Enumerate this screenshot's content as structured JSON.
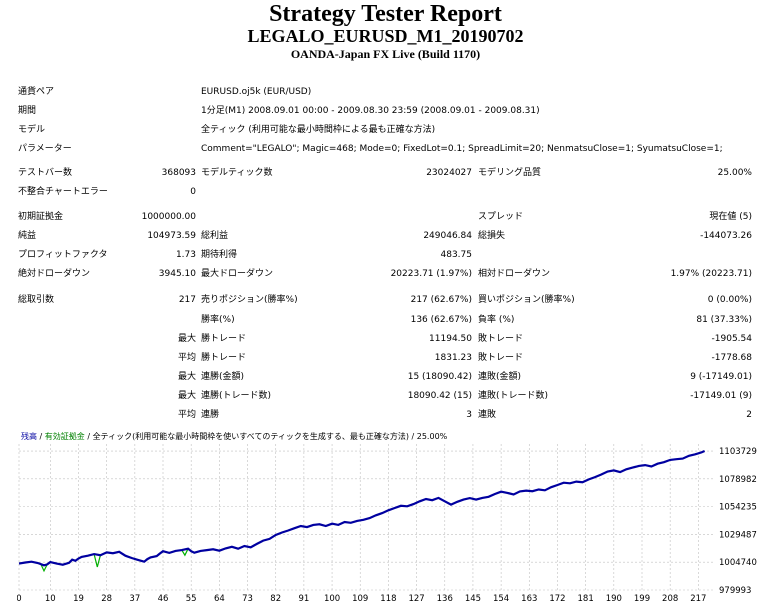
{
  "header": {
    "title": "Strategy Tester Report",
    "subtitle": "LEGALO_EURUSD_M1_20190702",
    "broker": "OANDA-Japan FX Live (Build 1170)"
  },
  "info": {
    "symbol_label": "通貨ペア",
    "symbol": "EURUSD.oj5k (EUR/USD)",
    "period_label": "期間",
    "period": "1分足(M1) 2008.09.01 00:00 - 2009.08.30 23:59 (2008.09.01 - 2009.08.31)",
    "model_label": "モデル",
    "model": "全ティック (利用可能な最小時間枠による最も正確な方法)",
    "params_label": "パラメーター",
    "params": "Comment=\"LEGALO\"; Magic=468; Mode=0; FixedLot=0.1; SpreadLimit=20; NenmatsuClose=1; SyumatsuClose=1;"
  },
  "stats": {
    "bars_label": "テストバー数",
    "bars": "368093",
    "ticks_label": "モデルティック数",
    "ticks": "23024027",
    "quality_label": "モデリング品質",
    "quality": "25.00%",
    "errors_label": "不整合チャートエラー",
    "errors": "0",
    "deposit_label": "初期証拠金",
    "deposit": "1000000.00",
    "spread_label": "スプレッド",
    "spread": "現在値 (5)",
    "net_label": "純益",
    "net": "104973.59",
    "gross_profit_label": "総利益",
    "gross_profit": "249046.84",
    "gross_loss_label": "総損失",
    "gross_loss": "-144073.26",
    "pf_label": "プロフィットファクタ",
    "pf": "1.73",
    "expected_label": "期待利得",
    "expected": "483.75",
    "abs_dd_label": "絶対ドローダウン",
    "abs_dd": "3945.10",
    "max_dd_label": "最大ドローダウン",
    "max_dd": "20223.71 (1.97%)",
    "rel_dd_label": "相対ドローダウン",
    "rel_dd": "1.97% (20223.71)",
    "trades_label": "総取引数",
    "trades": "217",
    "short_label": "売りポジション(勝率%)",
    "short": "217 (62.67%)",
    "long_label": "買いポジション(勝率%)",
    "long": "0 (0.00%)",
    "win_label": "勝率(%)",
    "win": "136 (62.67%)",
    "loss_label": "負率 (%)",
    "loss": "81 (37.33%)",
    "max_prefix": "最大",
    "avg_prefix": "平均",
    "largest_win_label": "勝トレード",
    "largest_win": "11194.50",
    "largest_loss_label": "敗トレード",
    "largest_loss": "-1905.54",
    "avg_win_label": "勝トレード",
    "avg_win": "1831.23",
    "avg_loss_label": "敗トレード",
    "avg_loss": "-1778.68",
    "cw_money_label": "連勝(金額)",
    "cw_money": "15 (18090.42)",
    "cl_money_label": "連敗(金額)",
    "cl_money": "9 (-17149.01)",
    "cw_trades_label": "連勝(トレード数)",
    "cw_trades": "18090.42 (15)",
    "cl_trades_label": "連敗(トレード数)",
    "cl_trades": "-17149.01 (9)",
    "avg_cw_label": "連勝",
    "avg_cw": "3",
    "avg_cl_label": "連敗",
    "avg_cl": "2"
  },
  "chart_data": {
    "type": "line",
    "legend": {
      "balance": "残高",
      "sep1": " / ",
      "equity": "有効証拠金",
      "sep2": " / ",
      "note": "全ティック(利用可能な最小時間枠を使いすべてのティックを生成する、最も正確な方法)",
      "sep3": " / ",
      "quality": "25.00%"
    },
    "x_ticks": [
      "0",
      "10",
      "19",
      "28",
      "37",
      "46",
      "55",
      "64",
      "73",
      "82",
      "91",
      "100",
      "109",
      "118",
      "127",
      "136",
      "145",
      "154",
      "163",
      "172",
      "181",
      "190",
      "199",
      "208",
      "217"
    ],
    "y_ticks": [
      "1103729",
      "1078982",
      "1054235",
      "1029487",
      "1004740",
      "979993"
    ],
    "ylim": [
      979993,
      1110000
    ],
    "xlim": [
      0,
      222
    ],
    "colors": {
      "balance": "#0000a0",
      "equity": "#00b000",
      "grid": "#c0c0c0"
    },
    "balance": [
      [
        0,
        1003500
      ],
      [
        2,
        1004500
      ],
      [
        4,
        1005200
      ],
      [
        6,
        1004000
      ],
      [
        8,
        1002000
      ],
      [
        9,
        1002800
      ],
      [
        10,
        1004800
      ],
      [
        12,
        1003500
      ],
      [
        14,
        1002500
      ],
      [
        16,
        1004200
      ],
      [
        17,
        1007000
      ],
      [
        18,
        1006000
      ],
      [
        19,
        1008000
      ],
      [
        20,
        1009500
      ],
      [
        22,
        1010500
      ],
      [
        24,
        1012000
      ],
      [
        26,
        1011000
      ],
      [
        28,
        1013500
      ],
      [
        30,
        1012800
      ],
      [
        32,
        1014000
      ],
      [
        34,
        1010500
      ],
      [
        36,
        1008500
      ],
      [
        38,
        1006800
      ],
      [
        40,
        1005200
      ],
      [
        41,
        1007500
      ],
      [
        42,
        1009000
      ],
      [
        44,
        1010200
      ],
      [
        45,
        1012500
      ],
      [
        46,
        1014500
      ],
      [
        48,
        1013000
      ],
      [
        50,
        1014800
      ],
      [
        52,
        1015500
      ],
      [
        54,
        1016800
      ],
      [
        55,
        1014500
      ],
      [
        56,
        1013200
      ],
      [
        58,
        1014800
      ],
      [
        60,
        1015500
      ],
      [
        62,
        1016200
      ],
      [
        64,
        1015000
      ],
      [
        66,
        1017000
      ],
      [
        68,
        1018500
      ],
      [
        70,
        1016800
      ],
      [
        72,
        1019200
      ],
      [
        74,
        1018000
      ],
      [
        76,
        1021000
      ],
      [
        78,
        1024000
      ],
      [
        80,
        1025500
      ],
      [
        82,
        1029000
      ],
      [
        84,
        1031200
      ],
      [
        86,
        1033000
      ],
      [
        88,
        1035000
      ],
      [
        90,
        1037000
      ],
      [
        92,
        1036000
      ],
      [
        94,
        1038000
      ],
      [
        96,
        1038500
      ],
      [
        98,
        1037000
      ],
      [
        100,
        1039000
      ],
      [
        102,
        1038000
      ],
      [
        104,
        1040500
      ],
      [
        106,
        1039800
      ],
      [
        108,
        1041500
      ],
      [
        110,
        1042500
      ],
      [
        112,
        1044000
      ],
      [
        114,
        1046500
      ],
      [
        116,
        1048500
      ],
      [
        118,
        1051000
      ],
      [
        120,
        1053000
      ],
      [
        122,
        1055000
      ],
      [
        124,
        1054500
      ],
      [
        126,
        1056500
      ],
      [
        128,
        1059000
      ],
      [
        130,
        1061000
      ],
      [
        132,
        1060000
      ],
      [
        134,
        1062000
      ],
      [
        136,
        1059000
      ],
      [
        138,
        1056000
      ],
      [
        140,
        1058500
      ],
      [
        142,
        1060500
      ],
      [
        144,
        1061800
      ],
      [
        146,
        1060500
      ],
      [
        148,
        1062000
      ],
      [
        150,
        1063000
      ],
      [
        152,
        1065500
      ],
      [
        154,
        1067500
      ],
      [
        156,
        1066500
      ],
      [
        158,
        1065000
      ],
      [
        160,
        1067800
      ],
      [
        162,
        1068500
      ],
      [
        164,
        1068000
      ],
      [
        166,
        1069500
      ],
      [
        168,
        1068800
      ],
      [
        170,
        1071500
      ],
      [
        172,
        1073500
      ],
      [
        174,
        1075500
      ],
      [
        176,
        1075000
      ],
      [
        178,
        1076500
      ],
      [
        180,
        1076000
      ],
      [
        182,
        1078500
      ],
      [
        184,
        1080500
      ],
      [
        186,
        1082800
      ],
      [
        188,
        1085500
      ],
      [
        190,
        1086500
      ],
      [
        192,
        1085000
      ],
      [
        194,
        1087500
      ],
      [
        196,
        1089000
      ],
      [
        198,
        1090500
      ],
      [
        200,
        1091200
      ],
      [
        202,
        1090000
      ],
      [
        204,
        1092500
      ],
      [
        206,
        1093800
      ],
      [
        208,
        1095800
      ],
      [
        210,
        1096500
      ],
      [
        212,
        1097000
      ],
      [
        214,
        1099500
      ],
      [
        216,
        1100800
      ],
      [
        218,
        1102500
      ],
      [
        219,
        1103729
      ]
    ],
    "equity_dips": [
      [
        [
          7,
          1003000
        ],
        [
          8,
          997000
        ],
        [
          9,
          1002800
        ]
      ],
      [
        [
          24,
          1012000
        ],
        [
          25,
          1000500
        ],
        [
          26,
          1011000
        ]
      ],
      [
        [
          52,
          1015500
        ],
        [
          53,
          1011000
        ],
        [
          54,
          1016800
        ]
      ]
    ]
  }
}
